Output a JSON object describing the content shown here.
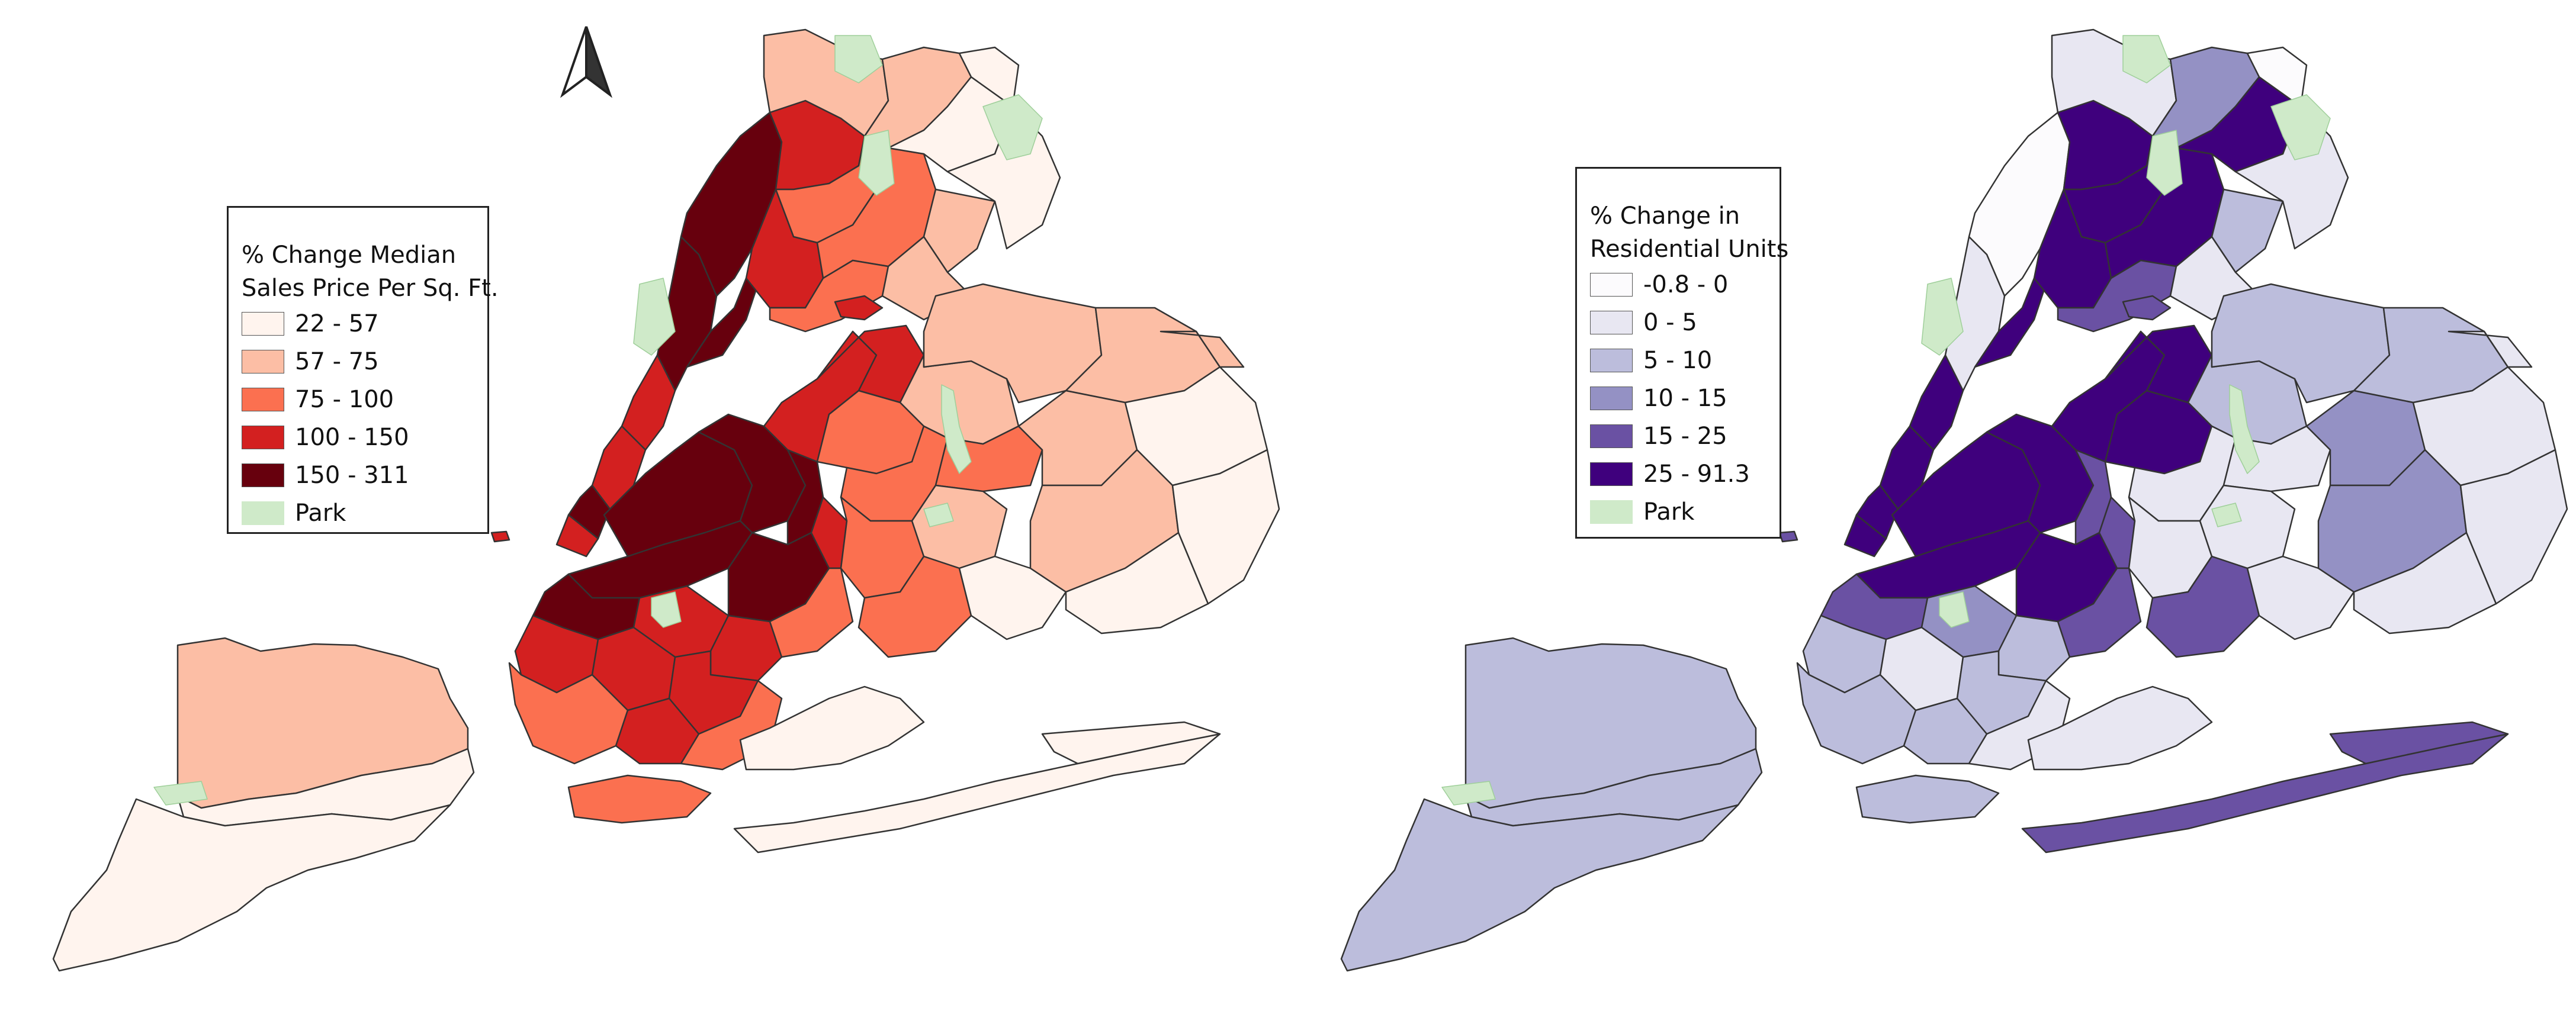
{
  "maps": [
    {
      "legend": {
        "title_line1": "% Change Median",
        "title_line2": "Sales Price Per Sq. Ft.",
        "classes": [
          {
            "label": "22 - 57",
            "color": "#fff4ee"
          },
          {
            "label": "57 - 75",
            "color": "#fcbea5"
          },
          {
            "label": "75 - 100",
            "color": "#fb7050"
          },
          {
            "label": "100 - 150",
            "color": "#d32020"
          },
          {
            "label": "150 - 311",
            "color": "#67000d"
          }
        ],
        "park": {
          "label": "Park",
          "color": "#cfeac9"
        }
      }
    },
    {
      "legend": {
        "title_line1": "% Change in",
        "title_line2": "Residential Units",
        "classes": [
          {
            "label": "-0.8 - 0",
            "color": "#fcfbfd"
          },
          {
            "label": "0 - 5",
            "color": "#e8e7f2"
          },
          {
            "label": "5 - 10",
            "color": "#bcbddc"
          },
          {
            "label": "10 - 15",
            "color": "#9491c4"
          },
          {
            "label": "15 - 25",
            "color": "#6a51a3"
          },
          {
            "label": "25 - 91.3",
            "color": "#3f007d"
          }
        ],
        "park": {
          "label": "Park",
          "color": "#cfeac9"
        }
      }
    }
  ],
  "north_arrow": "north-arrow-icon"
}
